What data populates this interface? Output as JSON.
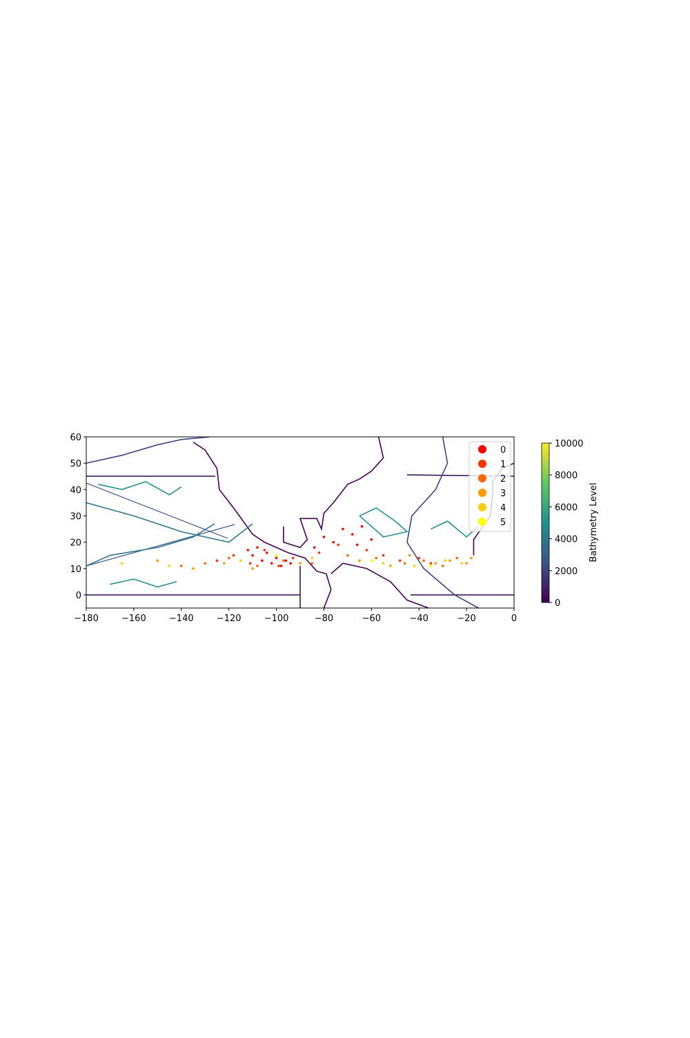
{
  "chart_data": {
    "type": "scatter",
    "xlim": [
      -180,
      0
    ],
    "ylim": [
      -5,
      60
    ],
    "xticks": [
      -180,
      -160,
      -140,
      -120,
      -100,
      -80,
      -60,
      -40,
      -20,
      0
    ],
    "yticks": [
      0,
      10,
      20,
      30,
      40,
      50,
      60
    ],
    "legend": "upper right",
    "series": [
      {
        "name": "0",
        "color": "#ff0000",
        "x": [
          -112,
          -110,
          -108,
          -106,
          -104,
          -102,
          -100,
          -98,
          -96,
          -94,
          -84,
          -80,
          -76,
          -72,
          -68,
          -64,
          -60,
          -66
        ],
        "y": [
          17,
          15,
          18,
          13,
          16,
          12,
          14,
          11,
          13,
          12,
          18,
          22,
          20,
          25,
          23,
          26,
          21,
          19
        ]
      },
      {
        "name": "1",
        "color": "#ff3300",
        "x": [
          -125,
          -118,
          -111,
          -105,
          -99,
          -93,
          -82,
          -74,
          -62,
          -55,
          -48,
          -40,
          -35
        ],
        "y": [
          13,
          15,
          12,
          17,
          11,
          14,
          16,
          19,
          17,
          15,
          13,
          14,
          12
        ]
      },
      {
        "name": "2",
        "color": "#ff6600",
        "x": [
          -140,
          -130,
          -120,
          -108,
          -97,
          -85,
          -70,
          -58,
          -46,
          -38,
          -30,
          -24
        ],
        "y": [
          11,
          12,
          14,
          11,
          13,
          12,
          15,
          14,
          12,
          13,
          11,
          14
        ]
      },
      {
        "name": "3",
        "color": "#ff9900",
        "x": [
          -150,
          -135,
          -122,
          -110,
          -90,
          -65,
          -52,
          -44,
          -33,
          -27,
          -20,
          -18
        ],
        "y": [
          13,
          10,
          12,
          10,
          12,
          13,
          11,
          15,
          12,
          13,
          12,
          14
        ]
      },
      {
        "name": "4",
        "color": "#ffcc00",
        "x": [
          -165,
          -145,
          -115,
          -85,
          -55,
          -42,
          -29,
          -22
        ],
        "y": [
          12,
          11,
          13,
          14,
          12,
          11,
          13,
          12
        ]
      },
      {
        "name": "5",
        "color": "#ffff00",
        "x": [
          -100,
          -60,
          -35
        ],
        "y": [
          15,
          13,
          11
        ]
      }
    ],
    "colorbar": {
      "label": "Bathymetry Level",
      "lim": [
        0,
        10000
      ],
      "ticks": [
        0,
        2000,
        4000,
        6000,
        8000,
        10000
      ],
      "colormap": [
        "#440154",
        "#3b528b",
        "#21918c",
        "#5ec962",
        "#fde725"
      ]
    },
    "contours": [
      {
        "level": 0,
        "x": [
          -135,
          -130,
          -125,
          -124,
          -118,
          -110,
          -105,
          -95,
          -88,
          -83,
          -79,
          -77,
          -80
        ],
        "y": [
          58,
          55,
          48,
          40,
          33,
          23,
          20,
          16,
          14,
          9,
          8,
          2,
          -5
        ]
      },
      {
        "level": 0,
        "x": [
          -97,
          -97,
          -90,
          -87,
          -90,
          -83,
          -81,
          -80,
          -76,
          -70,
          -65,
          -60,
          -55,
          -57
        ],
        "y": [
          26,
          20,
          18,
          21,
          29,
          29,
          25,
          31,
          35,
          42,
          44,
          47,
          52,
          60
        ]
      },
      {
        "level": 0,
        "x": [
          -77,
          -72,
          -62,
          -52,
          -45,
          -36
        ],
        "y": [
          8,
          12,
          10,
          5,
          -2,
          -5
        ]
      },
      {
        "level": 0,
        "x": [
          -17,
          -17,
          -10,
          -9,
          -9,
          -5,
          0
        ],
        "y": [
          15,
          21,
          30,
          38,
          43,
          48,
          50
        ]
      },
      {
        "level": 2000,
        "x": [
          -180,
          -165,
          -150,
          -140,
          -128
        ],
        "y": [
          50,
          53,
          57,
          59,
          60
        ]
      },
      {
        "level": 2000,
        "x": [
          -30,
          -28,
          -33,
          -43,
          -45,
          -38,
          -25,
          -15
        ],
        "y": [
          60,
          50,
          40,
          30,
          20,
          10,
          0,
          -5
        ]
      },
      {
        "level": 4000,
        "x": [
          -180,
          -160,
          -140,
          -120,
          -110
        ],
        "y": [
          35,
          30,
          24,
          20,
          27
        ]
      },
      {
        "level": 4000,
        "x": [
          -180,
          -170,
          -150,
          -135,
          -126
        ],
        "y": [
          11,
          15,
          18,
          22,
          27
        ]
      },
      {
        "level": 5000,
        "x": [
          -175,
          -165,
          -155,
          -145,
          -140
        ],
        "y": [
          42,
          40,
          43,
          38,
          41
        ]
      },
      {
        "level": 5000,
        "x": [
          -170,
          -160,
          -150,
          -142
        ],
        "y": [
          4,
          6,
          3,
          5
        ]
      },
      {
        "level": 5000,
        "x": [
          -65,
          -58,
          -50,
          -45,
          -55,
          -65
        ],
        "y": [
          30,
          33,
          28,
          24,
          22,
          30
        ]
      },
      {
        "level": 5000,
        "x": [
          -35,
          -28,
          -20,
          -15
        ],
        "y": [
          25,
          28,
          22,
          26
        ]
      }
    ]
  }
}
